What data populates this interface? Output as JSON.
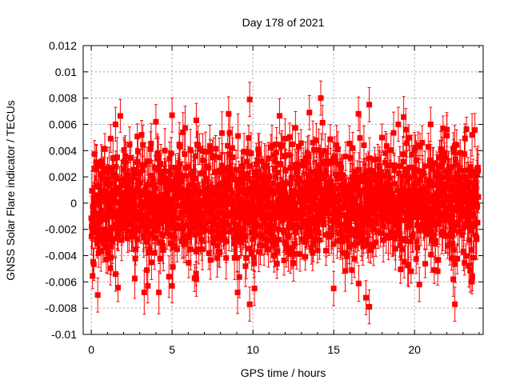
{
  "chart_data": {
    "type": "scatter",
    "title": "Day 178 of 2021",
    "xlabel": "GPS time / hours",
    "ylabel": "GNSS Solar Flare indicator / TECUs",
    "xlim": [
      -0.5,
      24.25
    ],
    "ylim": [
      -0.01,
      0.012
    ],
    "xticks": [
      0,
      5,
      10,
      15,
      20
    ],
    "xtick_labels": [
      "0",
      "5",
      "10",
      "15",
      "20"
    ],
    "yticks": [
      -0.01,
      -0.008,
      -0.006,
      -0.004,
      -0.002,
      0,
      0.002,
      0.004,
      0.006,
      0.008,
      0.01,
      0.012
    ],
    "ytick_labels": [
      "-0.01",
      "-0.008",
      "-0.006",
      "-0.004",
      "-0.002",
      "0",
      "0.002",
      "0.004",
      "0.006",
      "0.008",
      "0.01",
      "0.012"
    ],
    "grid": true,
    "series": [
      {
        "name": "solar flare indicator",
        "color": "#ff0000",
        "marker": "square",
        "error_bars": true,
        "x_start": 0,
        "x_end": 23.95,
        "noise_sd": 0.0022,
        "error_half_width": 0.0013,
        "note": "dense noise around zero; outlier points listed below",
        "outliers": [
          {
            "x": 9.8,
            "y": 0.0079
          },
          {
            "x": 9.8,
            "y": -0.0077
          },
          {
            "x": 10.1,
            "y": -0.0065
          },
          {
            "x": 14.2,
            "y": 0.008
          },
          {
            "x": 17.2,
            "y": 0.0075
          },
          {
            "x": 17.2,
            "y": -0.0079
          },
          {
            "x": 17.0,
            "y": -0.0072
          },
          {
            "x": 0.4,
            "y": -0.007
          },
          {
            "x": 22.5,
            "y": -0.0077
          },
          {
            "x": 8.5,
            "y": 0.0068
          },
          {
            "x": 5.0,
            "y": 0.0067
          },
          {
            "x": 13.5,
            "y": 0.0069
          },
          {
            "x": 1.5,
            "y": 0.006
          },
          {
            "x": 4.0,
            "y": 0.0062
          },
          {
            "x": 6.5,
            "y": 0.0063
          },
          {
            "x": 19.0,
            "y": 0.006
          },
          {
            "x": 21.0,
            "y": 0.006
          },
          {
            "x": 22.0,
            "y": 0.0056
          },
          {
            "x": 3.5,
            "y": -0.0063
          },
          {
            "x": 5.0,
            "y": -0.0063
          },
          {
            "x": 6.5,
            "y": -0.0058
          },
          {
            "x": 15.0,
            "y": -0.0065
          },
          {
            "x": 20.3,
            "y": -0.0062
          },
          {
            "x": 22.4,
            "y": -0.0058
          }
        ]
      }
    ]
  }
}
